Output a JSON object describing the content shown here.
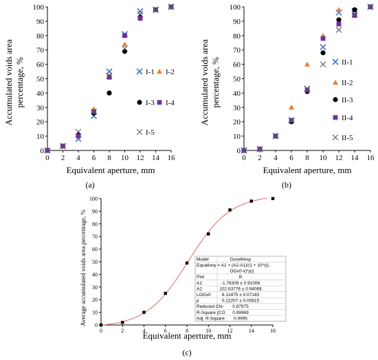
{
  "colors": {
    "blue": "#4472C4",
    "orange": "#ED7D31",
    "black": "#000000",
    "purple": "#7030A0",
    "gray": "#595959",
    "fit": "#E06666"
  },
  "chart_data": [
    {
      "type": "scatter",
      "caption": "(a)",
      "xlabel": "Equivalent aperture, mm",
      "ylabel_line1": "Accumulated voids area",
      "ylabel_line2": "percentage, %",
      "xlim": [
        0,
        16
      ],
      "ylim": [
        0,
        100
      ],
      "xticks": [
        "0",
        "2",
        "4",
        "6",
        "8",
        "10",
        "12",
        "14",
        "16"
      ],
      "yticks": [
        "0",
        "10",
        "20",
        "30",
        "40",
        "50",
        "60",
        "70",
        "80",
        "90",
        "100"
      ],
      "legend_placement": "right",
      "series": [
        {
          "name": "I-1",
          "marker": "x",
          "color": "#4472C4",
          "x": [
            0,
            2,
            4,
            6,
            8,
            10,
            12,
            14,
            16
          ],
          "y": [
            0,
            3,
            8,
            24,
            55,
            81,
            97,
            98,
            100
          ]
        },
        {
          "name": "I-2",
          "marker": "triangle",
          "color": "#ED7D31",
          "x": [
            0,
            2,
            4,
            6,
            8,
            10,
            12,
            14,
            16
          ],
          "y": [
            0,
            3,
            10,
            29,
            52,
            74,
            93,
            98,
            100
          ]
        },
        {
          "name": "I-3",
          "marker": "circle",
          "color": "#000000",
          "x": [
            0,
            2,
            4,
            6,
            8,
            10,
            12,
            14,
            16
          ],
          "y": [
            0,
            3,
            11,
            26,
            40,
            69,
            93,
            98,
            100
          ]
        },
        {
          "name": "I-4",
          "marker": "square",
          "color": "#7030A0",
          "x": [
            0,
            2,
            4,
            6,
            8,
            10,
            12,
            14,
            16
          ],
          "y": [
            0,
            3,
            10,
            27,
            51,
            80,
            92,
            98,
            100
          ]
        },
        {
          "name": "I-5",
          "marker": "cross",
          "color": "#595959",
          "x": [
            0,
            2,
            4,
            6,
            8,
            10,
            12,
            14,
            16
          ],
          "y": [
            0,
            3,
            13,
            27,
            52,
            71,
            95,
            98,
            100
          ]
        }
      ]
    },
    {
      "type": "scatter",
      "caption": "(b)",
      "xlabel": "Equivalent aperture, mm",
      "ylabel_line1": "Accumulated voids area",
      "ylabel_line2": "percentage, %",
      "xlim": [
        0,
        16
      ],
      "ylim": [
        0,
        100
      ],
      "xticks": [
        "0",
        "2",
        "4",
        "6",
        "8",
        "10",
        "12",
        "14",
        "16"
      ],
      "yticks": [
        "0",
        "10",
        "20",
        "30",
        "40",
        "50",
        "60",
        "70",
        "80",
        "90",
        "100"
      ],
      "legend_placement": "right",
      "series": [
        {
          "name": "II-1",
          "marker": "x",
          "color": "#4472C4",
          "x": [
            0,
            2,
            4,
            6,
            8,
            10,
            12,
            14,
            16
          ],
          "y": [
            0,
            1,
            10,
            21,
            43,
            72,
            96,
            97,
            100
          ]
        },
        {
          "name": "II-2",
          "marker": "triangle",
          "color": "#ED7D31",
          "x": [
            0,
            2,
            4,
            6,
            8,
            10,
            12,
            14,
            16
          ],
          "y": [
            0,
            1,
            10,
            30,
            60,
            80,
            98,
            98,
            100
          ]
        },
        {
          "name": "II-3",
          "marker": "circle",
          "color": "#000000",
          "x": [
            0,
            2,
            4,
            6,
            8,
            10,
            12,
            14,
            16
          ],
          "y": [
            0,
            1,
            10,
            20,
            41,
            68,
            91,
            98,
            100
          ]
        },
        {
          "name": "II-4",
          "marker": "square",
          "color": "#7030A0",
          "x": [
            0,
            2,
            4,
            6,
            8,
            10,
            12,
            14,
            16
          ],
          "y": [
            0,
            1,
            10,
            21,
            42,
            78,
            88,
            94,
            100
          ]
        },
        {
          "name": "II-5",
          "marker": "cross",
          "color": "#595959",
          "x": [
            0,
            2,
            4,
            6,
            8,
            10,
            12,
            14,
            16
          ],
          "y": [
            0,
            1,
            10,
            21,
            43,
            60,
            84,
            95,
            100
          ]
        }
      ]
    },
    {
      "type": "scatter",
      "caption": "(c)",
      "xlabel": "Equivalent aperture, mm",
      "ylabel": "Average accumulated voids area percentage, %",
      "xlim": [
        0,
        16
      ],
      "ylim": [
        0,
        100
      ],
      "xticks": [
        "0",
        "2",
        "4",
        "6",
        "8",
        "10",
        "12",
        "14",
        "16"
      ],
      "yticks": [
        "0",
        "10",
        "20",
        "30",
        "40",
        "50",
        "60",
        "70",
        "80",
        "90",
        "100"
      ],
      "series": [
        {
          "name": "B",
          "marker": "square",
          "color": "#000000",
          "x": [
            0,
            2,
            4,
            6,
            8,
            10,
            12,
            14,
            16
          ],
          "y": [
            0,
            2,
            10,
            25,
            49,
            72,
            91,
            98,
            100
          ]
        }
      ],
      "fit": {
        "A1": -1.78309,
        "A2": 102.63776,
        "LOGx0": 8.12475,
        "p": 0.22207
      },
      "table": [
        [
          "Model",
          "DoseResp"
        ],
        [
          "Equation",
          "y = A1 + (A2-A1)/(1 + 10^((L",
          "OGx0-x)*p))"
        ],
        [
          "Plot",
          "B"
        ],
        [
          "A1",
          "-1.78309 ± 0.91006"
        ],
        [
          "A2",
          "102.63776 ± 0.94068"
        ],
        [
          "LOGx0",
          "8.12475 ± 0.07143"
        ],
        [
          "p",
          "0.22207 ± 0.00815"
        ],
        [
          "Reduced Chi-",
          "0.87975"
        ],
        [
          "R-Square (CO",
          "0.99969"
        ],
        [
          "Adj. R-Square",
          "0.9995"
        ]
      ]
    }
  ]
}
